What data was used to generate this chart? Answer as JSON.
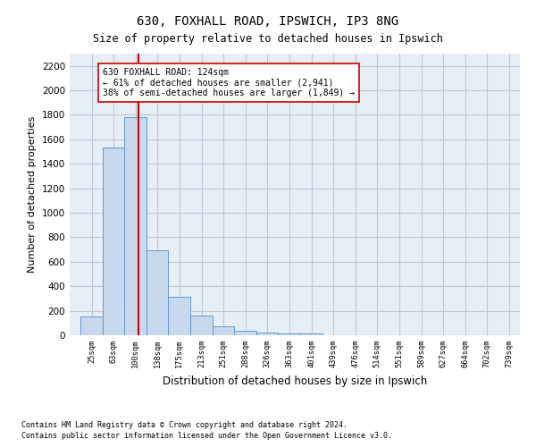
{
  "title1": "630, FOXHALL ROAD, IPSWICH, IP3 8NG",
  "title2": "Size of property relative to detached houses in Ipswich",
  "xlabel": "Distribution of detached houses by size in Ipswich",
  "ylabel": "Number of detached properties",
  "footer1": "Contains HM Land Registry data © Crown copyright and database right 2024.",
  "footer2": "Contains public sector information licensed under the Open Government Licence v3.0.",
  "bar_edges": [
    25,
    63,
    100,
    138,
    175,
    213,
    251,
    288,
    326,
    363,
    401,
    439,
    476,
    514,
    551,
    589,
    627,
    664,
    702,
    739,
    777
  ],
  "bar_heights": [
    155,
    1530,
    1780,
    695,
    315,
    160,
    75,
    40,
    25,
    18,
    12,
    0,
    0,
    0,
    0,
    0,
    0,
    0,
    0,
    0
  ],
  "bar_color": "#c9d9ed",
  "bar_edgecolor": "#5b9bd5",
  "grid_color": "#c0c8d8",
  "vline_x": 124,
  "vline_color": "#cc0000",
  "annotation_text": "630 FOXHALL ROAD: 124sqm\n← 61% of detached houses are smaller (2,941)\n38% of semi-detached houses are larger (1,849) →",
  "annotation_box_color": "#ffffff",
  "annotation_box_edgecolor": "#cc0000",
  "ylim": [
    0,
    2300
  ],
  "yticks": [
    0,
    200,
    400,
    600,
    800,
    1000,
    1200,
    1400,
    1600,
    1800,
    2000,
    2200
  ],
  "background_color": "#ffffff",
  "plot_bg_color": "#e8eef5"
}
